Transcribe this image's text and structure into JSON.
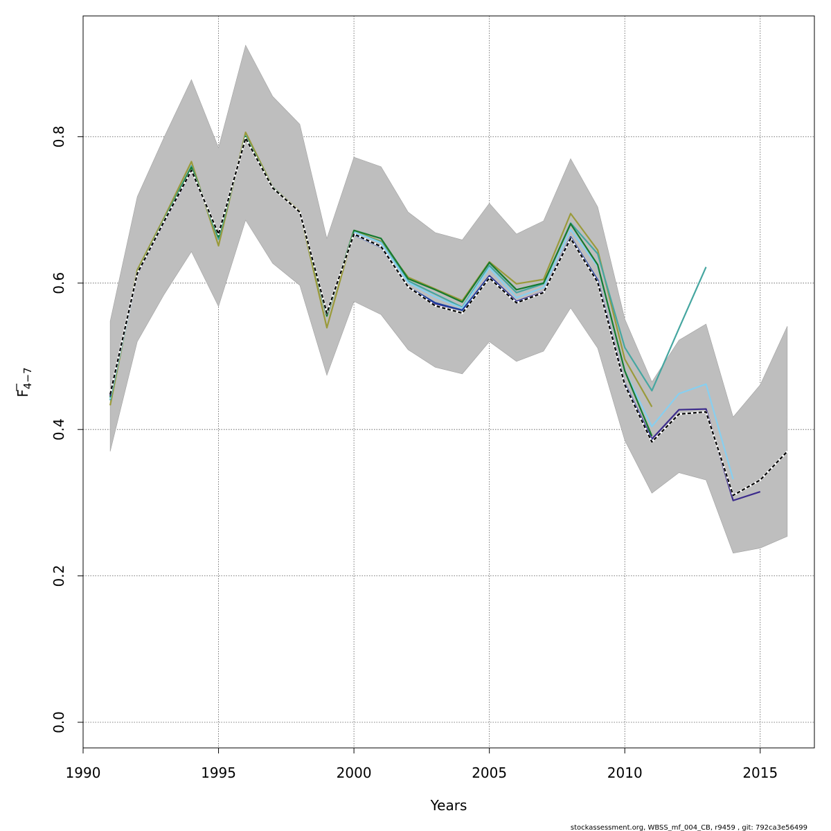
{
  "chart_data": {
    "type": "line",
    "xlabel": "Years",
    "ylabel_main": "F",
    "ylabel_sub": "4−7",
    "xlim": [
      1990,
      2017
    ],
    "ylim": [
      -0.035,
      0.965
    ],
    "x_ticks": [
      1990,
      1995,
      2000,
      2005,
      2010,
      2015
    ],
    "y_ticks": [
      0.0,
      0.2,
      0.4,
      0.6,
      0.8
    ],
    "y_tick_labels": [
      "0.0",
      "0.2",
      "0.4",
      "0.6",
      "0.8"
    ],
    "grid": true,
    "confidence_band": {
      "color": "#bebebe",
      "x": [
        1991,
        1992,
        1993,
        1994,
        1995,
        1996,
        1997,
        1998,
        1999,
        2000,
        2001,
        2002,
        2003,
        2004,
        2005,
        2006,
        2007,
        2008,
        2009,
        2010,
        2011,
        2012,
        2013,
        2014,
        2015,
        2016
      ],
      "lower": [
        0.37,
        0.52,
        0.585,
        0.643,
        0.568,
        0.686,
        0.627,
        0.597,
        0.474,
        0.575,
        0.557,
        0.509,
        0.485,
        0.476,
        0.52,
        0.493,
        0.507,
        0.566,
        0.511,
        0.385,
        0.313,
        0.341,
        0.331,
        0.231,
        0.238,
        0.254
      ],
      "upper": [
        0.548,
        0.718,
        0.8,
        0.878,
        0.785,
        0.925,
        0.855,
        0.817,
        0.661,
        0.772,
        0.759,
        0.697,
        0.669,
        0.659,
        0.709,
        0.667,
        0.685,
        0.77,
        0.704,
        0.551,
        0.465,
        0.522,
        0.544,
        0.417,
        0.461,
        0.541
      ]
    },
    "series": [
      {
        "color": "#9a9a3a",
        "dashed": false,
        "x": [
          1991,
          1992,
          1993,
          1994,
          1995,
          1996,
          1997,
          1998,
          1999,
          2000,
          2001,
          2002,
          2003,
          2004,
          2005,
          2006,
          2007,
          2008,
          2009,
          2010,
          2011
        ],
        "values": [
          0.433,
          0.618,
          0.69,
          0.766,
          0.651,
          0.806,
          0.731,
          0.698,
          0.539,
          0.671,
          0.657,
          0.608,
          0.592,
          0.576,
          0.629,
          0.599,
          0.605,
          0.695,
          0.645,
          0.496,
          0.431
        ]
      },
      {
        "color": "#45a6a0",
        "dashed": false,
        "x": [
          1991,
          1992,
          1993,
          1994,
          1995,
          1996,
          1997,
          1998,
          1999,
          2000,
          2001,
          2002,
          2003,
          2004,
          2005,
          2006,
          2007,
          2008,
          2009,
          2010,
          2011,
          2012,
          2013
        ],
        "values": [
          0.44,
          0.614,
          0.687,
          0.76,
          0.66,
          0.801,
          0.73,
          0.697,
          0.556,
          0.67,
          0.656,
          0.603,
          0.585,
          0.567,
          0.624,
          0.587,
          0.599,
          0.682,
          0.64,
          0.512,
          0.453,
          0.538,
          0.622
        ]
      },
      {
        "color": "#87cff0",
        "dashed": false,
        "x": [
          1991,
          1992,
          1993,
          1994,
          1995,
          1996,
          1997,
          1998,
          1999,
          2000,
          2001,
          2002,
          2003,
          2004,
          2005,
          2006,
          2007,
          2008,
          2009,
          2010,
          2011,
          2012,
          2013,
          2014
        ],
        "values": [
          0.442,
          0.612,
          0.686,
          0.756,
          0.663,
          0.8,
          0.73,
          0.697,
          0.556,
          0.67,
          0.655,
          0.601,
          0.581,
          0.566,
          0.621,
          0.58,
          0.594,
          0.673,
          0.623,
          0.48,
          0.404,
          0.449,
          0.462,
          0.332
        ]
      },
      {
        "color": "#167a2e",
        "dashed": false,
        "x": [
          1991,
          1992,
          1993,
          1994,
          1995,
          1996,
          1997,
          1998,
          1999,
          2000,
          2001,
          2002,
          2003,
          2004,
          2005,
          2006,
          2007,
          2008,
          2009,
          2010,
          2011
        ],
        "values": [
          0.444,
          0.614,
          0.686,
          0.758,
          0.663,
          0.8,
          0.731,
          0.697,
          0.555,
          0.672,
          0.661,
          0.606,
          0.591,
          0.574,
          0.628,
          0.591,
          0.6,
          0.681,
          0.625,
          0.48,
          0.391
        ]
      },
      {
        "color": "#3b2a8c",
        "dashed": false,
        "x": [
          1991,
          1992,
          1993,
          1994,
          1995,
          1996,
          1997,
          1998,
          1999,
          2000,
          2001,
          2002,
          2003,
          2004,
          2005,
          2006,
          2007,
          2008,
          2009,
          2010,
          2011,
          2012,
          2013,
          2014,
          2015
        ],
        "values": [
          0.446,
          0.612,
          0.684,
          0.753,
          0.667,
          0.798,
          0.73,
          0.697,
          0.558,
          0.667,
          0.65,
          0.595,
          0.572,
          0.563,
          0.61,
          0.575,
          0.588,
          0.663,
          0.604,
          0.463,
          0.387,
          0.427,
          0.428,
          0.303,
          0.315
        ]
      },
      {
        "color": "#1d3fa0",
        "dashed": false,
        "x": [
          2000,
          2001,
          2002,
          2003,
          2004,
          2005,
          2006,
          2007,
          2008,
          2009,
          2010,
          2011
        ],
        "values": [
          0.666,
          0.649,
          0.595,
          0.573,
          0.563,
          0.609,
          0.574,
          0.587,
          0.663,
          0.604,
          0.463,
          0.385
        ]
      },
      {
        "color": "#000000",
        "dashed": true,
        "x": [
          1991,
          1992,
          1993,
          1994,
          1995,
          1996,
          1997,
          1998,
          1999,
          2000,
          2001,
          2002,
          2003,
          2004,
          2005,
          2006,
          2007,
          2008,
          2009,
          2010,
          2011,
          2012,
          2013,
          2014,
          2015,
          2016
        ],
        "values": [
          0.448,
          0.613,
          0.685,
          0.754,
          0.667,
          0.798,
          0.73,
          0.697,
          0.559,
          0.667,
          0.65,
          0.595,
          0.569,
          0.559,
          0.607,
          0.573,
          0.587,
          0.661,
          0.601,
          0.461,
          0.383,
          0.421,
          0.424,
          0.31,
          0.331,
          0.37
        ]
      }
    ]
  },
  "footer_text": "stockassessment.org, WBSS_mf_004_CB, r9459 , git: 792ca3e56499"
}
